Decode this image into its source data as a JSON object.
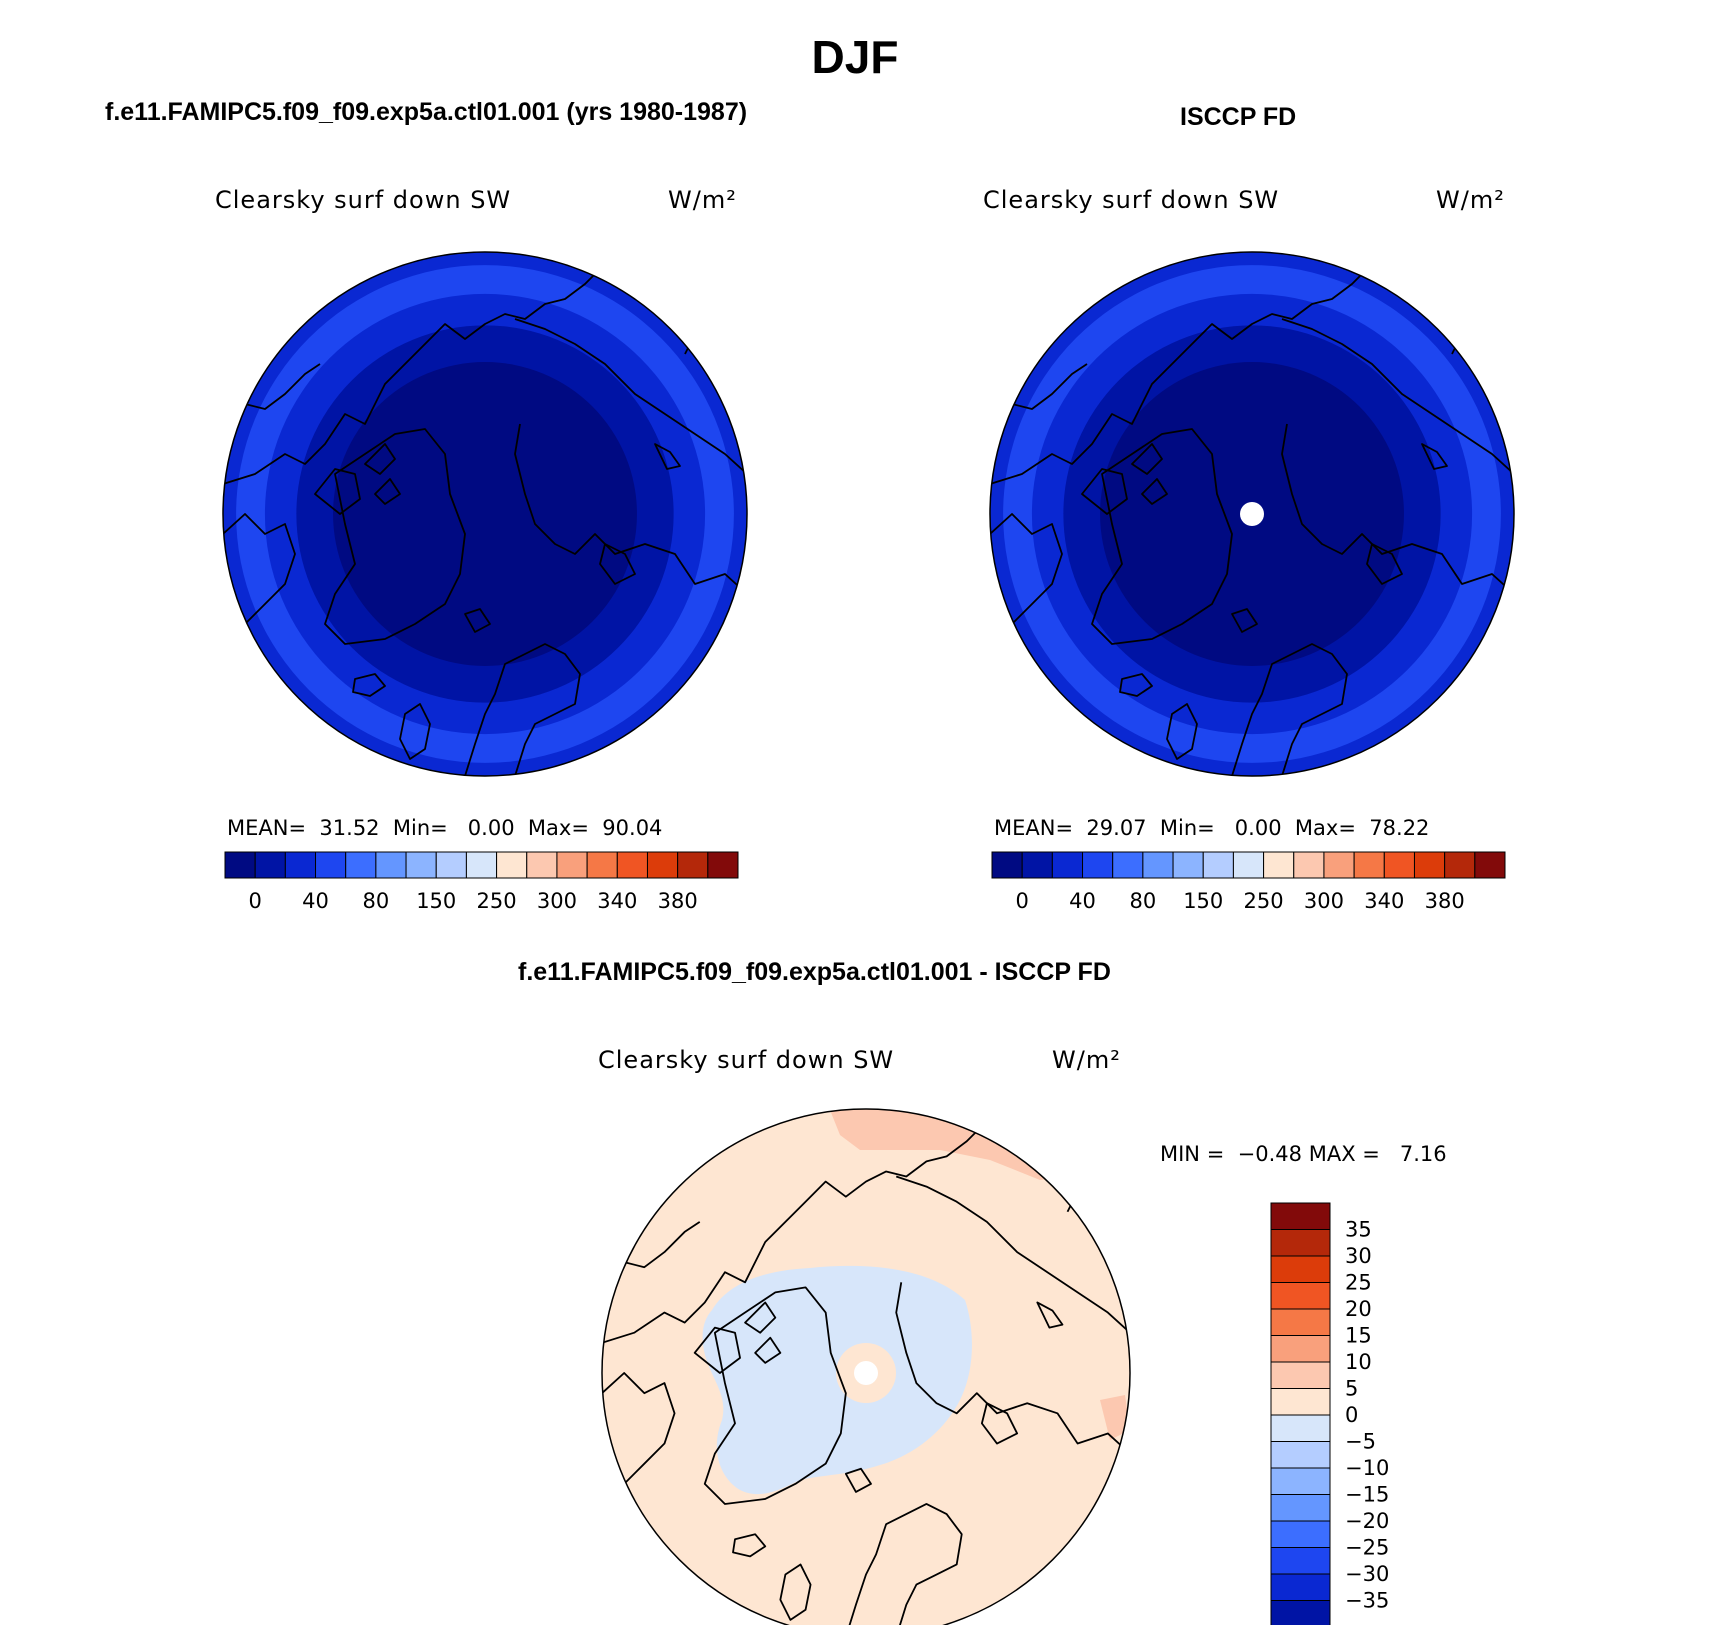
{
  "page": {
    "title": "DJF",
    "left_case_title": "f.e11.FAMIPC5.f09_f09.exp5a.ctl01.001 (yrs 1980-1987)",
    "right_case_title": "ISCCP FD",
    "diff_case_title": "f.e11.FAMIPC5.f09_f09.exp5a.ctl01.001 - ISCCP FD"
  },
  "colors": {
    "blue_scale": [
      "#000a82",
      "#0014a5",
      "#0a28d2",
      "#1e46f0",
      "#3c6eff",
      "#6496ff",
      "#8cb4ff",
      "#b4cdff",
      "#d7e6fa"
    ],
    "red_scale": [
      "#fee6d2",
      "#fcc8b0",
      "#f9a07c",
      "#f57846",
      "#f05523",
      "#dc3c0a",
      "#b4280a",
      "#820a0a"
    ],
    "diff_scale": [
      "#000a82",
      "#0014a5",
      "#0a28d2",
      "#1e46f0",
      "#3c6eff",
      "#6496ff",
      "#8cb4ff",
      "#b4cdff",
      "#d7e6fa",
      "#fee6d2",
      "#fcc8b0",
      "#f9a07c",
      "#f57846",
      "#f05523",
      "#dc3c0a",
      "#b4280a",
      "#820a0a"
    ],
    "missing": "#ffffff",
    "coast": "#000000"
  },
  "chart_data": [
    {
      "type": "heatmap",
      "projection": "north polar stereographic",
      "title": "f.e11.FAMIPC5.f09_f09.exp5a.ctl01.001 (yrs 1980-1987)",
      "variable": "Clearsky surf down SW",
      "units": "W/m²",
      "stats": {
        "mean_label": "MEAN=",
        "mean": "31.52",
        "min_label": "Min=",
        "min": "0.00",
        "max_label": "Max=",
        "max": "90.04"
      },
      "colorbar_labels": [
        "0",
        "40",
        "80",
        "150",
        "250",
        "300",
        "340",
        "380"
      ],
      "rings": [
        {
          "color_index": 2,
          "level": "80-100"
        },
        {
          "color_index": 3,
          "level": "60-80"
        },
        {
          "color_index": 2,
          "level": "40-60"
        },
        {
          "color_index": 1,
          "level": "20-40"
        },
        {
          "color_index": 0,
          "level": "0-20"
        }
      ]
    },
    {
      "type": "heatmap",
      "projection": "north polar stereographic",
      "title": "ISCCP FD",
      "variable": "Clearsky surf down SW",
      "units": "W/m²",
      "stats": {
        "mean_label": "MEAN=",
        "mean": "29.07",
        "min_label": "Min=",
        "min": "0.00",
        "max_label": "Max=",
        "max": "78.22"
      },
      "colorbar_labels": [
        "0",
        "40",
        "80",
        "150",
        "250",
        "300",
        "340",
        "380"
      ],
      "pole_missing": true,
      "rings": [
        {
          "color_index": 2,
          "level": "60-80"
        },
        {
          "color_index": 3,
          "level": "40-60"
        },
        {
          "color_index": 2,
          "level": "20-40"
        },
        {
          "color_index": 1,
          "level": "10-20"
        },
        {
          "color_index": 0,
          "level": "0-10"
        }
      ]
    },
    {
      "type": "heatmap",
      "projection": "north polar stereographic",
      "title": "f.e11.FAMIPC5.f09_f09.exp5a.ctl01.001 - ISCCP FD",
      "variable": "Clearsky surf down SW",
      "units": "W/m²",
      "stats": {
        "min_label": "MIN =",
        "min": "−0.48",
        "max_label": "MAX =",
        "max": "7.16"
      },
      "colorbar_labels": [
        "35",
        "30",
        "25",
        "20",
        "15",
        "10",
        "5",
        "0",
        "−5",
        "−10",
        "−15",
        "−20",
        "−25",
        "−30",
        "−35"
      ],
      "dominant": "0 to 5",
      "inner_region": "-5 to 0",
      "pole_ring": "0 to 5",
      "pole_missing": true,
      "edge_patches": "5 to 10"
    }
  ]
}
